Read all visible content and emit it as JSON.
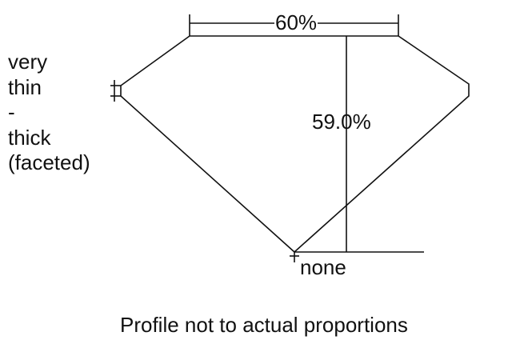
{
  "diagram": {
    "girdle_label_lines": [
      "very",
      "thin",
      "-",
      "thick",
      "(faceted)"
    ],
    "table_label": "60%",
    "depth_label": "59.0%",
    "culet_label": "none",
    "note": "Profile not to actual proportions",
    "line_color": "#111111"
  }
}
